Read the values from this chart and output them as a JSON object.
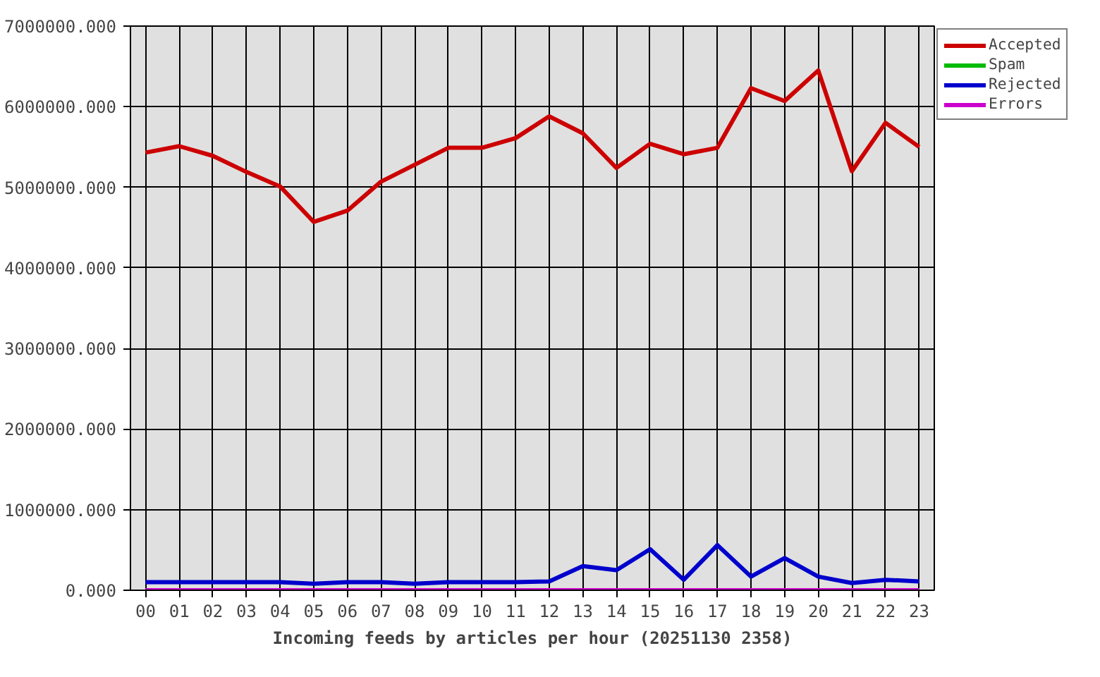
{
  "chart_data": {
    "type": "line",
    "xlabel": "Incoming feeds by articles per hour (20251130 2358)",
    "categories": [
      "00",
      "01",
      "02",
      "03",
      "04",
      "05",
      "06",
      "07",
      "08",
      "09",
      "10",
      "11",
      "12",
      "13",
      "14",
      "15",
      "16",
      "17",
      "18",
      "19",
      "20",
      "21",
      "22",
      "23"
    ],
    "series": [
      {
        "name": "Accepted",
        "color": "#cc0000",
        "values": [
          5430000,
          5510000,
          5390000,
          5190000,
          5010000,
          4570000,
          4710000,
          5070000,
          5280000,
          5490000,
          5490000,
          5610000,
          5880000,
          5670000,
          5240000,
          5540000,
          5410000,
          5490000,
          6230000,
          6070000,
          6450000,
          5200000,
          5800000,
          5500000
        ]
      },
      {
        "name": "Spam",
        "color": "#00bb00",
        "values": [
          null,
          null,
          null,
          null,
          null,
          null,
          null,
          null,
          null,
          null,
          null,
          null,
          null,
          null,
          null,
          null,
          null,
          null,
          null,
          null,
          null,
          null,
          null,
          null
        ]
      },
      {
        "name": "Rejected",
        "color": "#0000cc",
        "values": [
          100000,
          100000,
          100000,
          100000,
          100000,
          80000,
          100000,
          100000,
          80000,
          100000,
          100000,
          100000,
          110000,
          300000,
          250000,
          510000,
          130000,
          560000,
          170000,
          400000,
          170000,
          90000,
          130000,
          110000
        ]
      },
      {
        "name": "Errors",
        "color": "#cc00cc",
        "values": [
          0,
          0,
          0,
          0,
          0,
          0,
          0,
          0,
          0,
          0,
          0,
          0,
          0,
          0,
          0,
          0,
          0,
          0,
          0,
          0,
          0,
          0,
          0,
          0
        ]
      }
    ],
    "ylim": [
      0,
      7000000
    ],
    "yticks": [
      {
        "value": 0,
        "label": "0.000"
      },
      {
        "value": 1000000,
        "label": "1000000.000"
      },
      {
        "value": 2000000,
        "label": "2000000.000"
      },
      {
        "value": 3000000,
        "label": "3000000.000"
      },
      {
        "value": 4000000,
        "label": "4000000.000"
      },
      {
        "value": 5000000,
        "label": "5000000.000"
      },
      {
        "value": 6000000,
        "label": "6000000.000"
      },
      {
        "value": 7000000,
        "label": "7000000.000"
      }
    ],
    "grid": true,
    "legend": "top right",
    "line_style": "solid"
  }
}
